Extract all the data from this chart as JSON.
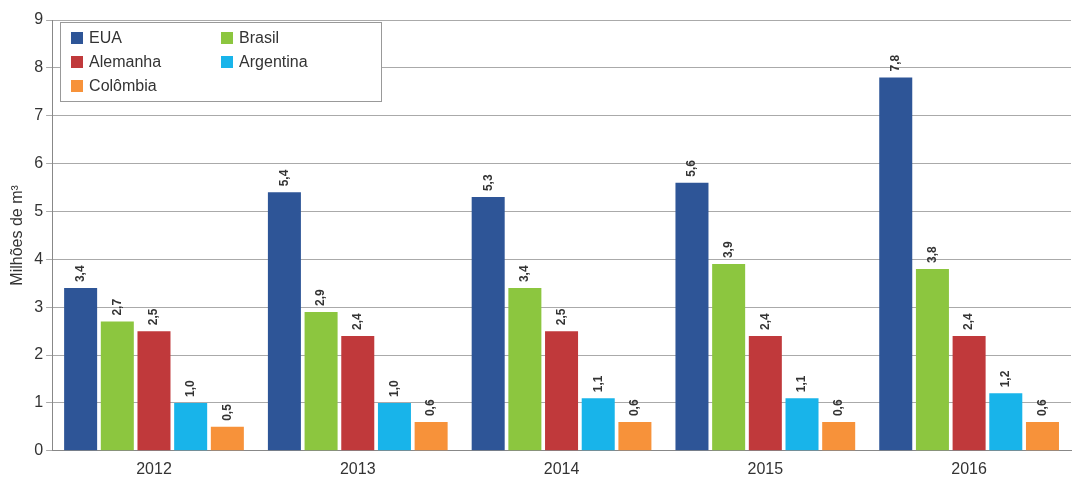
{
  "chart_data": {
    "type": "bar",
    "ylabel": "Milhões de m³",
    "categories": [
      "2012",
      "2013",
      "2014",
      "2015",
      "2016"
    ],
    "series": [
      {
        "name": "EUA",
        "color": "#2e5597",
        "values": [
          3.4,
          5.4,
          5.3,
          5.6,
          7.8
        ],
        "value_labels": [
          "3,4",
          "5,4",
          "5,3",
          "5,6",
          "7,8"
        ]
      },
      {
        "name": "Brasil",
        "color": "#8cc63f",
        "values": [
          2.7,
          2.9,
          3.4,
          3.9,
          3.8
        ],
        "value_labels": [
          "2,7",
          "2,9",
          "3,4",
          "3,9",
          "3,8"
        ]
      },
      {
        "name": "Alemanha",
        "color": "#c0393b",
        "values": [
          2.5,
          2.4,
          2.5,
          2.4,
          2.4
        ],
        "value_labels": [
          "2,5",
          "2,4",
          "2,5",
          "2,4",
          "2,4"
        ]
      },
      {
        "name": "Argentina",
        "color": "#18b4ea",
        "values": [
          1.0,
          1.0,
          1.1,
          1.1,
          1.2
        ],
        "value_labels": [
          "1,0",
          "1,0",
          "1,1",
          "1,1",
          "1,2"
        ]
      },
      {
        "name": "Colômbia",
        "color": "#f7923a",
        "values": [
          0.5,
          0.6,
          0.6,
          0.6,
          0.6
        ],
        "value_labels": [
          "0,5",
          "0,6",
          "0,6",
          "0,6",
          "0,6"
        ]
      }
    ],
    "ylim": [
      0,
      9
    ],
    "yticks": [
      0,
      1,
      2,
      3,
      4,
      5,
      6,
      7,
      8,
      9
    ],
    "grid": "y",
    "legend": "top left"
  }
}
